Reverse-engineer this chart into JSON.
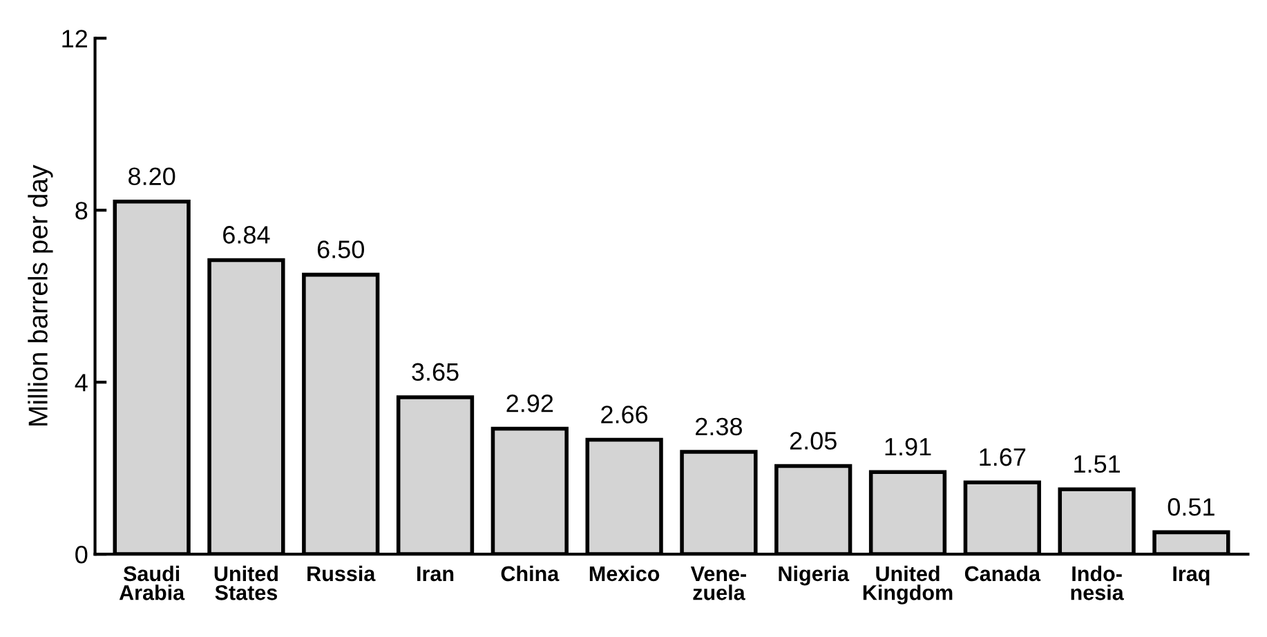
{
  "chart_data": {
    "type": "bar",
    "ylabel": "Million barrels per day",
    "categories": [
      "Saudi\nArabia",
      "United\nStates",
      "Russia",
      "Iran",
      "China",
      "Mexico",
      "Vene-\nzuela",
      "Nigeria",
      "United\nKingdom",
      "Canada",
      "Indo-\nnesia",
      "Iraq"
    ],
    "values": [
      8.2,
      6.84,
      6.5,
      3.65,
      2.92,
      2.66,
      2.38,
      2.05,
      1.91,
      1.67,
      1.51,
      0.51
    ],
    "value_labels": [
      "8.20",
      "6.84",
      "6.50",
      "3.65",
      "2.92",
      "2.66",
      "2.38",
      "2.05",
      "1.91",
      "1.67",
      "1.51",
      "0.51"
    ],
    "color": "#d4d4d4",
    "ylim": [
      0,
      12
    ],
    "yticks": [
      0,
      4,
      8,
      12
    ],
    "grid": false
  }
}
